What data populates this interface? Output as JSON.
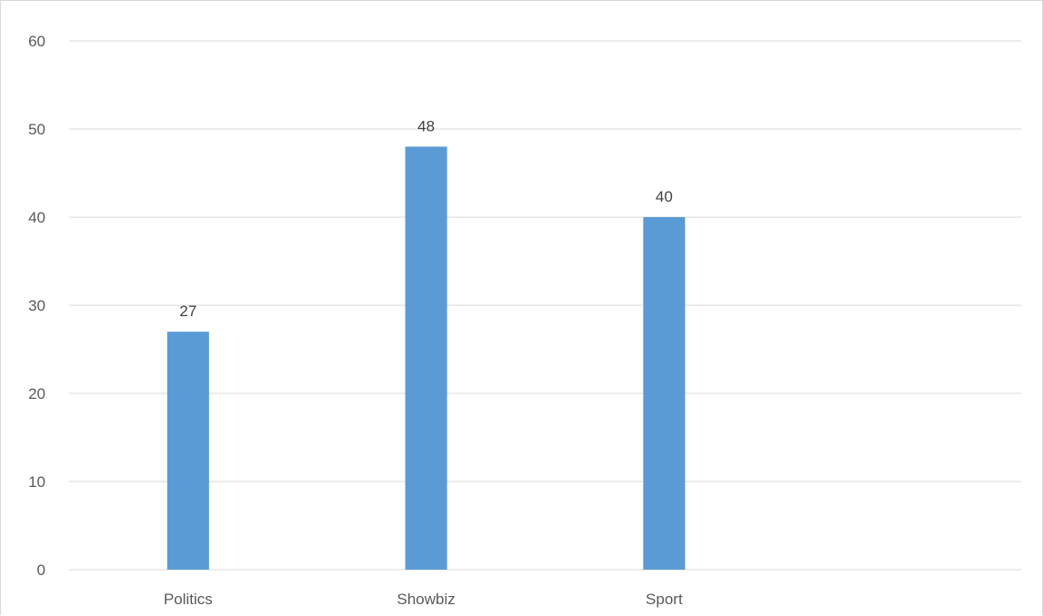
{
  "chart_data": {
    "type": "bar",
    "title": "",
    "xlabel": "",
    "ylabel": "",
    "categories": [
      "Politics",
      "Showbiz",
      "Sport"
    ],
    "values": [
      27,
      48,
      40
    ],
    "data_labels": [
      "27",
      "48",
      "40"
    ],
    "ylim": [
      0,
      60
    ],
    "yticks": [
      "0",
      "10",
      "20",
      "30",
      "40",
      "50",
      "60"
    ],
    "grid": true,
    "legend": "none",
    "bar_color": "#5b9bd5",
    "gridline_color": "#d9d9d9"
  }
}
